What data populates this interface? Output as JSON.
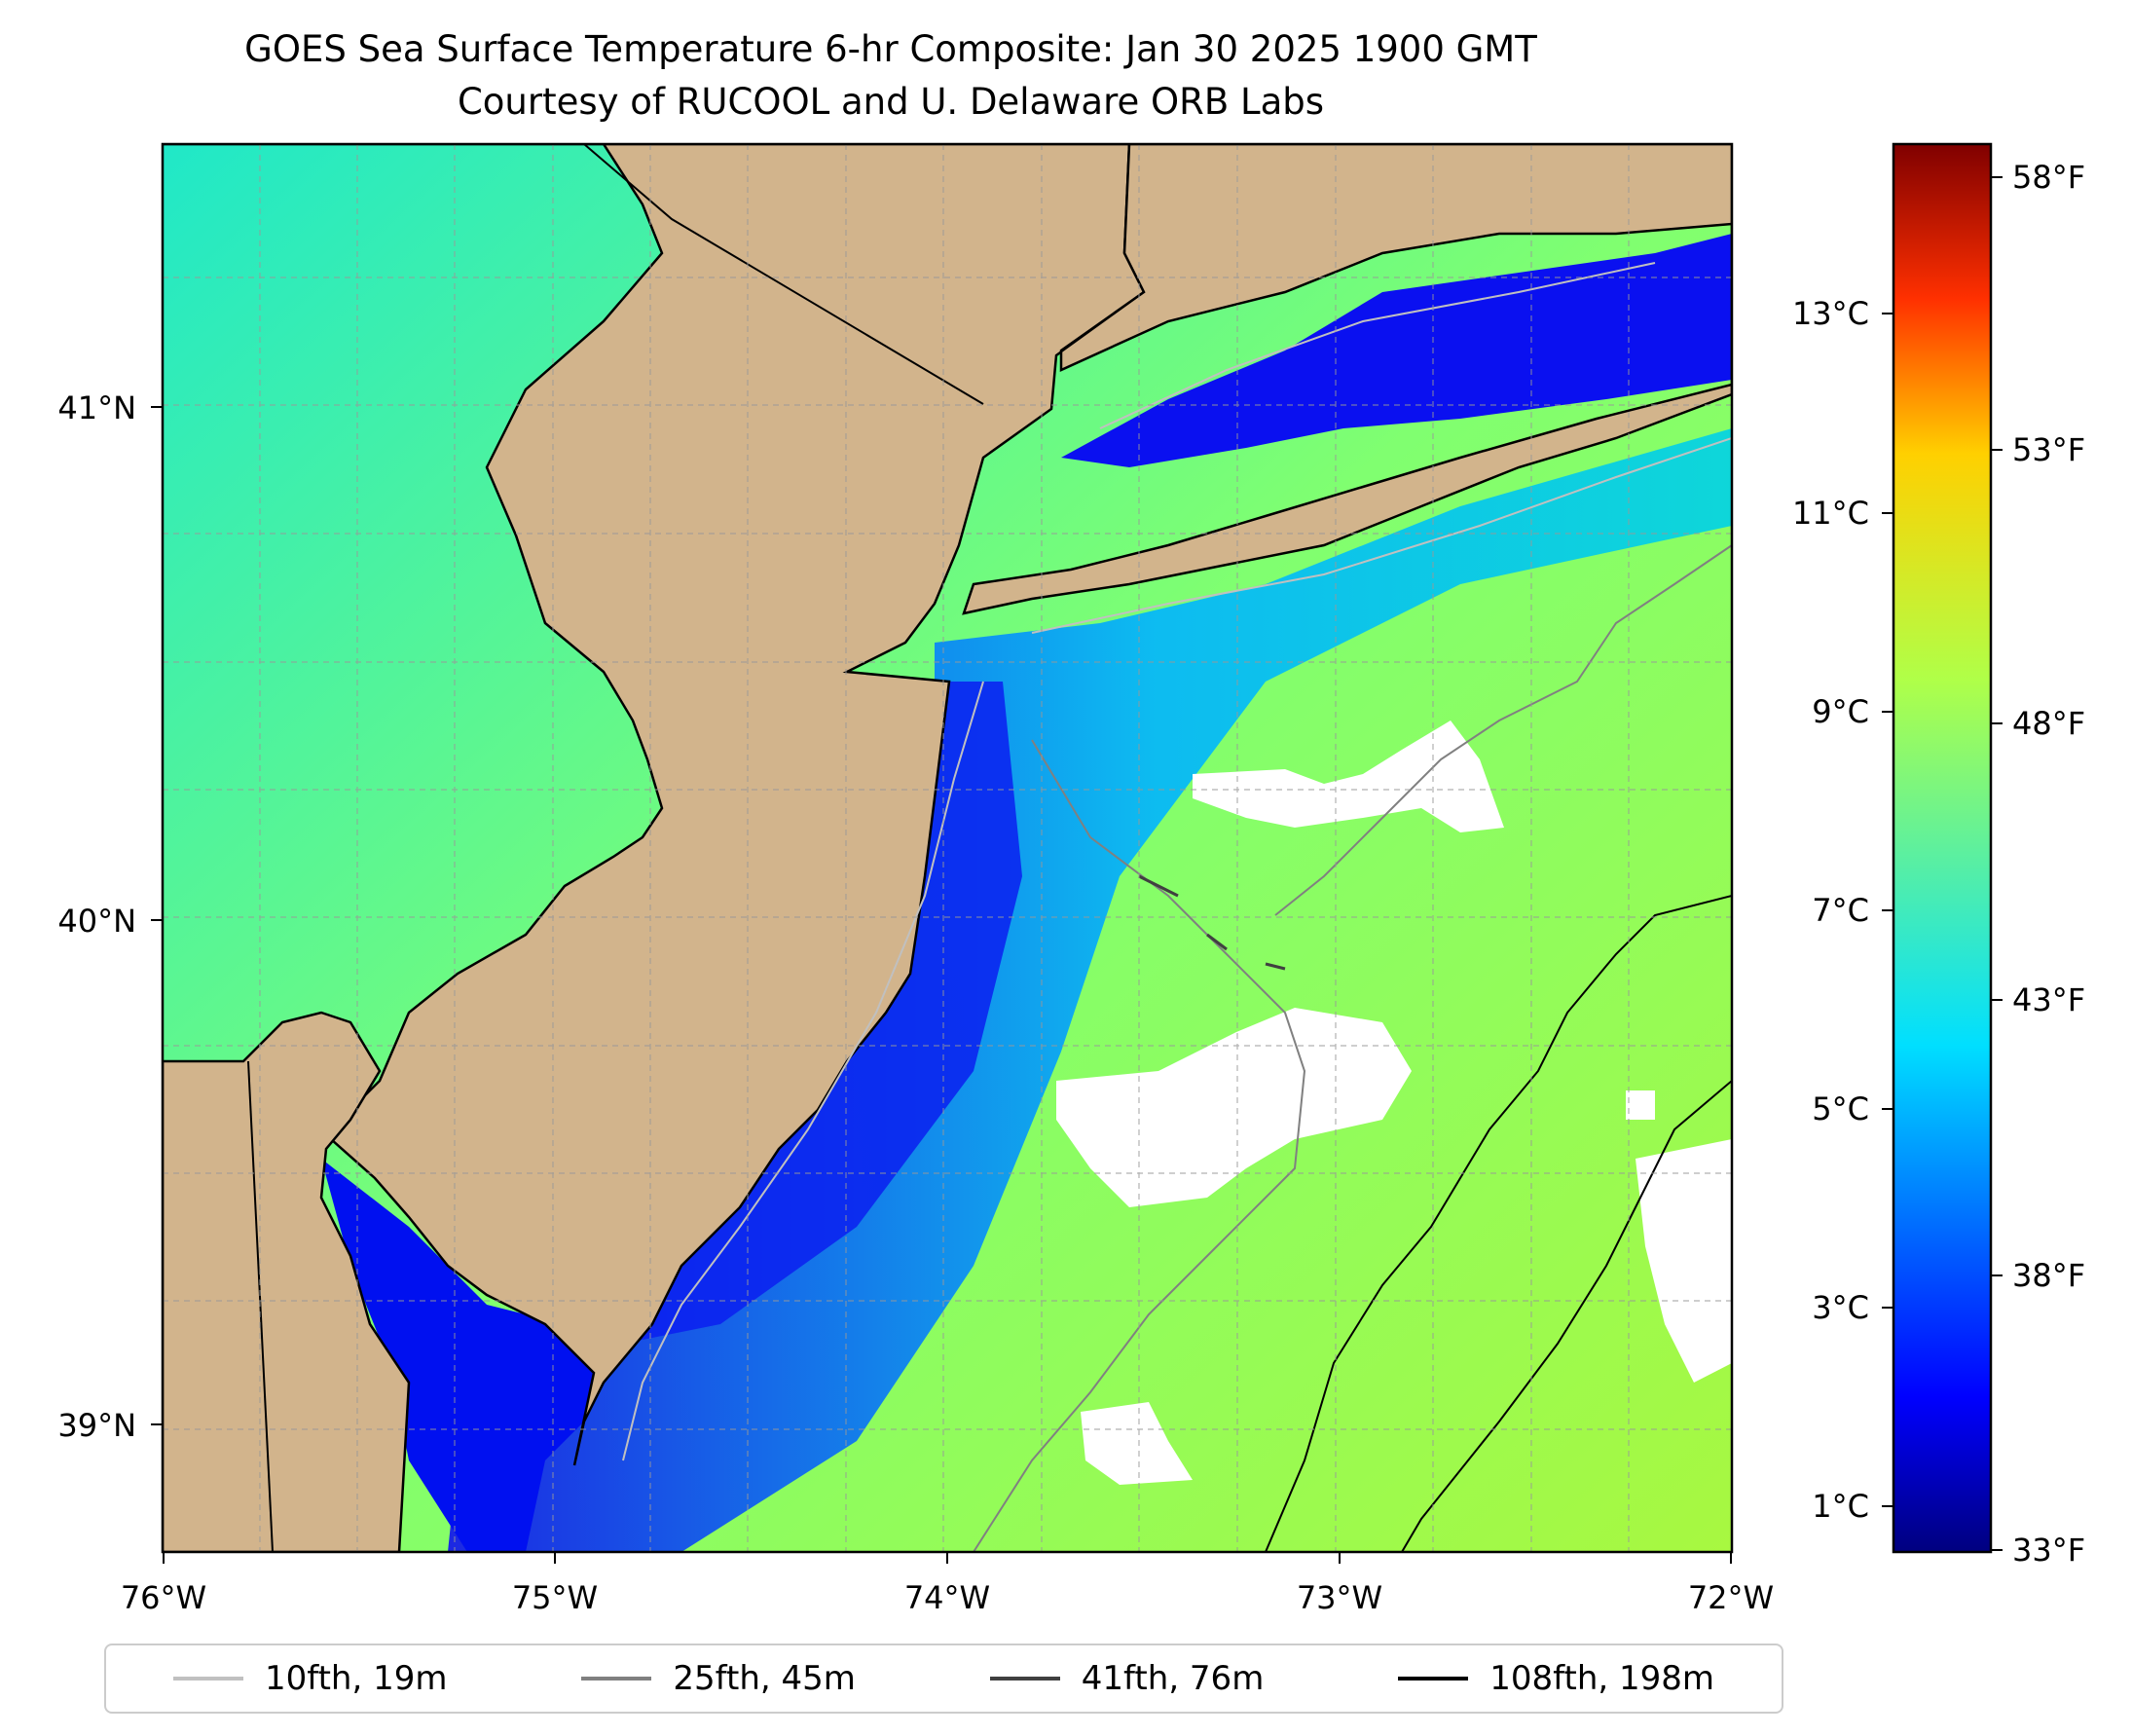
{
  "title": "GOES Sea Surface Temperature 6-hr Composite: Jan 30 2025 1900 GMT",
  "subtitle": "Courtesy of RUCOOL and U. Delaware ORB Labs",
  "map": {
    "lon_range": [
      -76,
      -72
    ],
    "lat_range": [
      38.75,
      41.52
    ],
    "x_ticks": [
      "76°W",
      "75°W",
      "74°W",
      "73°W",
      "72°W"
    ],
    "y_ticks": [
      "41°N",
      "40°N",
      "39°N"
    ],
    "land_color": "#d2b48c",
    "gridlines": true
  },
  "colorbar": {
    "colormap": "jet",
    "celsius_ticks": [
      "13°C",
      "11°C",
      "9°C",
      "7°C",
      "5°C",
      "3°C",
      "1°C"
    ],
    "fahrenheit_ticks": [
      "58°F",
      "53°F",
      "48°F",
      "43°F",
      "38°F",
      "33°F"
    ]
  },
  "legend": [
    {
      "label": "10fth, 19m",
      "color": "#c0c0c0"
    },
    {
      "label": "25fth, 45m",
      "color": "#808080"
    },
    {
      "label": "41fth, 76m",
      "color": "#404040"
    },
    {
      "label": "108fth, 198m",
      "color": "#000000"
    }
  ]
}
